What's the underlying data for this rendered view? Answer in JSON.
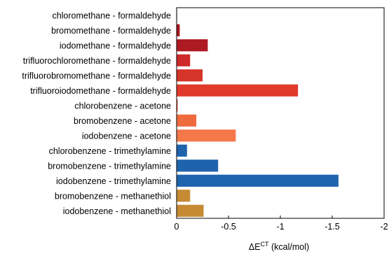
{
  "chart_data": {
    "type": "bar",
    "orientation": "horizontal",
    "categories": [
      "chloromethane - formaldehyde",
      "bromomethane - formaldehyde",
      "iodomethane - formaldehyde",
      "trifluorochloromethane - formaldehyde",
      "trifluorobromomethane - formaldehyde",
      "trifluoroiodomethane - formaldehyde",
      "chlorobenzene - acetone",
      "bromobenzene - acetone",
      "iodobenzene - acetone",
      "chlorobenzene - trimethylamine",
      "bromobenzene - trimethylamine",
      "iodobenzene - trimethylamine",
      "bromobenzene - methanethiol",
      "iodobenzene - methanethiol"
    ],
    "values": [
      0.0,
      -0.03,
      -0.3,
      -0.13,
      -0.25,
      -1.17,
      -0.01,
      -0.19,
      -0.57,
      -0.1,
      -0.4,
      -1.56,
      -0.13,
      -0.26
    ],
    "colors": [
      "#9b1b1b",
      "#a3161c",
      "#ad1a22",
      "#cf2a2a",
      "#d63329",
      "#e03a2c",
      "#e8542f",
      "#ef6b3e",
      "#f4784a",
      "#1f63ad",
      "#1f63ad",
      "#1f63ad",
      "#c68a32",
      "#c68a32"
    ],
    "xlim": [
      0,
      -2
    ],
    "xticks": [
      0,
      -0.5,
      -1,
      -1.5,
      -2
    ],
    "xtick_labels": [
      "0",
      "-0.5",
      "-1",
      "-1.5",
      "-2"
    ],
    "xlabel": "ΔE",
    "xlabel_superscript": "CT",
    "xlabel_unit": " (kcal/mol)",
    "title": "",
    "grid": false
  }
}
